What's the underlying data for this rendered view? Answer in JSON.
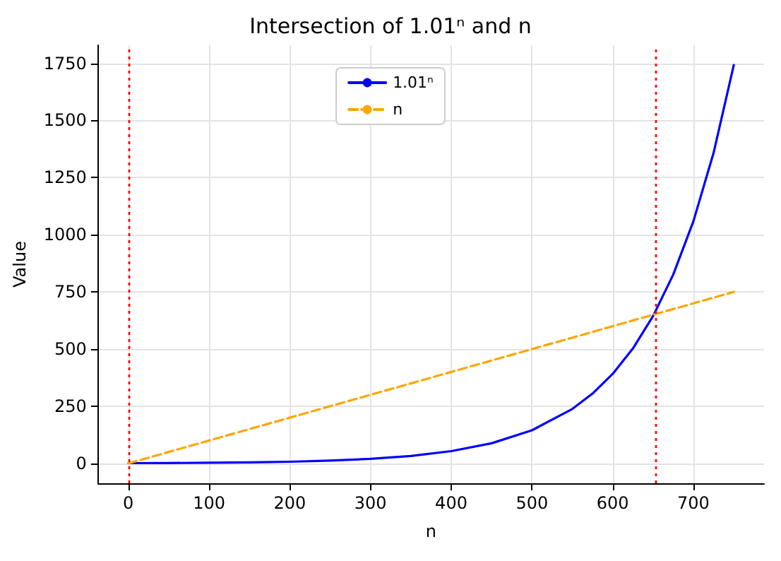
{
  "chart_data": {
    "type": "line",
    "title": "Intersection of 1.01ⁿ and n",
    "xlabel": "n",
    "ylabel": "Value",
    "series": [
      {
        "name": "1.01ⁿ",
        "color": "#0000ff",
        "line_style": "solid",
        "x": [
          0,
          50,
          100,
          150,
          200,
          250,
          300,
          350,
          400,
          450,
          500,
          550,
          575,
          600,
          625,
          650,
          675,
          700,
          725,
          750
        ],
        "values": [
          1,
          1.6,
          2.7,
          4.4,
          7.3,
          12,
          19.8,
          32.5,
          53.5,
          88,
          144.8,
          238.1,
          305.3,
          391.6,
          502.2,
          644,
          825.9,
          1059.2,
          1358.4,
          1742.1
        ]
      },
      {
        "name": "n",
        "color": "#ffa500",
        "line_style": "dashed",
        "x": [
          0,
          750
        ],
        "values": [
          0,
          750
        ]
      }
    ],
    "ref_lines": [
      {
        "axis": "x",
        "value": 1,
        "color": "#ff0000",
        "line_style": "dotted"
      },
      {
        "axis": "x",
        "value": 652.7,
        "color": "#ff0000",
        "line_style": "dotted"
      }
    ],
    "xlim": [
      -37.5,
      787.5
    ],
    "xticks": [
      0,
      100,
      200,
      300,
      400,
      500,
      600,
      700
    ],
    "ylim": [
      -87,
      1829
    ],
    "yticks": [
      0,
      250,
      500,
      750,
      1000,
      1250,
      1500,
      1750
    ],
    "grid": true,
    "legend": "top",
    "marker": "none"
  }
}
